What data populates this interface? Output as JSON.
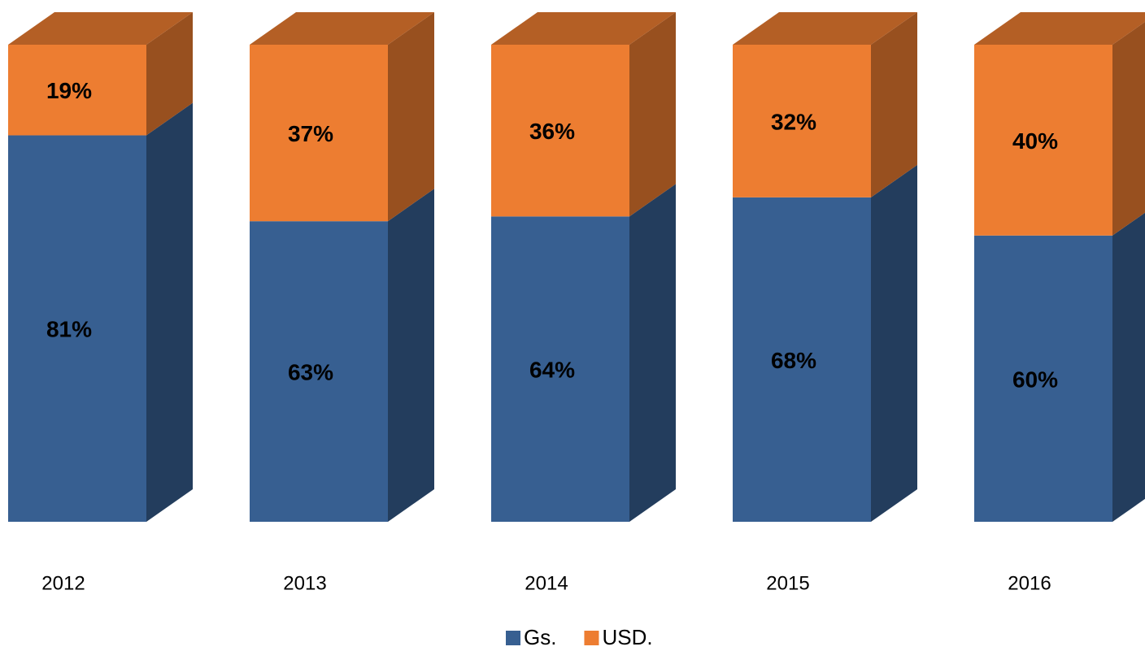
{
  "chart_data": {
    "type": "stacked-bar-3d",
    "categories": [
      "2012",
      "2013",
      "2014",
      "2015",
      "2016"
    ],
    "series": [
      {
        "name": "Gs.",
        "color": "#375f91",
        "values": [
          81,
          63,
          64,
          68,
          60
        ],
        "value_labels": [
          "81%",
          "63%",
          "64%",
          "68%",
          "60%"
        ]
      },
      {
        "name": "USD.",
        "color": "#ed7d31",
        "values": [
          19,
          37,
          36,
          32,
          40
        ],
        "value_labels": [
          "19%",
          "37%",
          "36%",
          "32%",
          "40%"
        ]
      }
    ],
    "legend": "bottom"
  }
}
